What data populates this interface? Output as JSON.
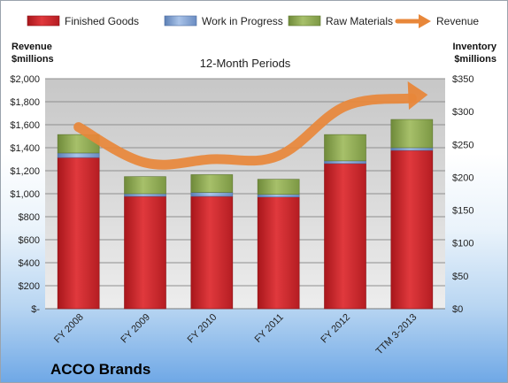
{
  "chart_data": {
    "type": "bar",
    "subtitle": "12-Month Periods",
    "company": "ACCO Brands",
    "categories": [
      "FY 2008",
      "FY 2009",
      "FY 2010",
      "FY 2011",
      "FY 2012",
      "TTM 3-2013"
    ],
    "left_axis": {
      "label_line1": "Revenue",
      "label_line2": "$millions",
      "ticks": [
        "$-",
        "$200",
        "$400",
        "$600",
        "$800",
        "$1,000",
        "$1,200",
        "$1,400",
        "$1,600",
        "$1,800",
        "$2,000"
      ],
      "ylim": [
        0,
        2000
      ]
    },
    "right_axis": {
      "label_line1": "Inventory",
      "label_line2": "$millions",
      "ticks": [
        "$0",
        "$50",
        "$100",
        "$150",
        "$200",
        "$250",
        "$300",
        "$350"
      ],
      "ylim": [
        0,
        350
      ]
    },
    "series": [
      {
        "name": "Finished Goods",
        "axis": "right",
        "color": "#d42a2f",
        "values": [
          230,
          171,
          171,
          170,
          221,
          241
        ]
      },
      {
        "name": "Work in Progress",
        "axis": "right",
        "color": "#7ea2d6",
        "values": [
          7,
          4,
          6,
          4,
          4,
          4
        ]
      },
      {
        "name": "Raw Materials",
        "axis": "right",
        "color": "#93b05a",
        "values": [
          28,
          26,
          27,
          23,
          40,
          43
        ]
      },
      {
        "name": "Revenue",
        "axis": "left",
        "type": "line",
        "color": "#e8873a",
        "values": [
          1580,
          1270,
          1300,
          1330,
          1760,
          1830
        ]
      }
    ],
    "grid": true,
    "legend": "top"
  }
}
